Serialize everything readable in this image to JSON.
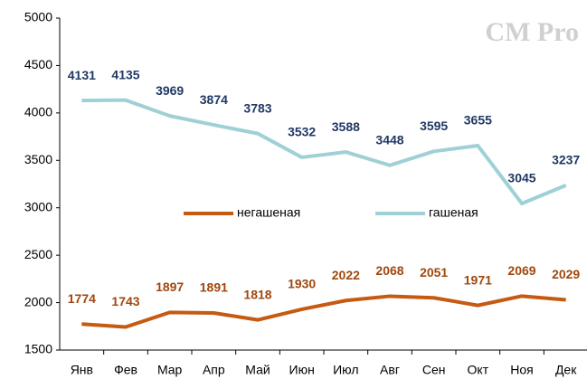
{
  "chart_data": {
    "type": "line",
    "watermark": "CM Pro",
    "categories": [
      "Янв",
      "Фев",
      "Мар",
      "Апр",
      "Май",
      "Июн",
      "Июл",
      "Авг",
      "Сен",
      "Окт",
      "Ноя",
      "Дек"
    ],
    "series": [
      {
        "name": "негашеная",
        "color": "#c55a11",
        "label_color": "#a0470e",
        "values": [
          1774,
          1743,
          1897,
          1891,
          1818,
          1930,
          2022,
          2068,
          2051,
          1971,
          2069,
          2029
        ]
      },
      {
        "name": "гашеная",
        "color": "#9fd0d6",
        "label_color": "#1f3864",
        "values": [
          4131,
          4135,
          3969,
          3874,
          3783,
          3532,
          3588,
          3448,
          3595,
          3655,
          3045,
          3237
        ]
      }
    ],
    "ylim": [
      1500,
      5000
    ],
    "yticks": [
      1500,
      2000,
      2500,
      3000,
      3500,
      4000,
      4500,
      5000
    ],
    "grid": false,
    "legend": "center"
  }
}
